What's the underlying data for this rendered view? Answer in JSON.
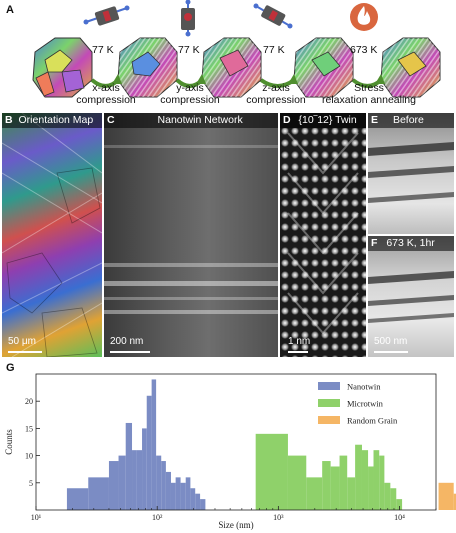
{
  "panel_a": {
    "letter": "A",
    "steps": [
      {
        "temp": "77 K",
        "line1": "x-axis",
        "line2": "compression"
      },
      {
        "temp": "77 K",
        "line1": "y-axis",
        "line2": "compression"
      },
      {
        "temp": "77 K",
        "line1": "z-axis",
        "line2": "compression"
      },
      {
        "temp": "673 K",
        "line1": "Stress",
        "line2": "relaxation annealing"
      }
    ]
  },
  "panel_b": {
    "letter": "B",
    "title": "Orientation Map",
    "scale": "50 μm"
  },
  "panel_c": {
    "letter": "C",
    "title": "Nanotwin Network",
    "scale": "200 nm"
  },
  "panel_d": {
    "letter": "D",
    "title": "{10‾12} Twin",
    "scale": "1 nm"
  },
  "panel_e": {
    "letter": "E",
    "title": "Before"
  },
  "panel_f": {
    "letter": "F",
    "title": "673 K, 1hr",
    "scale": "500 nm"
  },
  "panel_g": {
    "letter": "G"
  },
  "colors": {
    "nanotwin": "#7b8cc4",
    "microtwin": "#8fd16a",
    "random_grain": "#f5b665"
  },
  "chart_data": {
    "type": "bar",
    "xlabel": "Size (nm)",
    "ylabel": "Counts",
    "xscale": "log",
    "xlim": [
      10,
      20000
    ],
    "ylim": [
      0,
      25
    ],
    "xticks": [
      "10¹",
      "10²",
      "10³",
      "10⁴",
      "10⁵"
    ],
    "xtick_values": [
      10,
      100,
      1000,
      10000,
      100000
    ],
    "yticks": [
      "5",
      "10",
      "15",
      "20"
    ],
    "legend": "top-right",
    "series": [
      {
        "name": "Nanotwin",
        "color": "#7b8cc4",
        "edges": [
          18,
          27,
          40,
          48,
          55,
          62,
          68,
          75,
          82,
          90,
          98,
          108,
          118,
          130,
          142,
          156,
          172,
          188,
          206,
          226,
          250
        ],
        "counts": [
          4,
          6,
          9,
          10,
          16,
          11,
          11,
          15,
          21,
          24,
          10,
          9,
          7,
          5,
          6,
          5,
          6,
          4,
          3,
          2
        ]
      },
      {
        "name": "Microtwin",
        "color": "#8fd16a",
        "edges": [
          650,
          1200,
          1700,
          2300,
          2700,
          3200,
          3700,
          4300,
          4900,
          5500,
          6100,
          6800,
          7500,
          8400,
          9400,
          10500
        ],
        "counts": [
          14,
          10,
          6,
          9,
          8,
          10,
          6,
          12,
          11,
          8,
          11,
          10,
          5,
          4,
          2
        ]
      },
      {
        "name": "Random Grain",
        "color": "#f5b665",
        "edges": [
          21000,
          28000,
          34000,
          40000,
          47000,
          54000,
          60000,
          67000,
          75000,
          83000,
          92000,
          101000,
          112000,
          124000,
          136000,
          150000,
          165000
        ],
        "counts": [
          5,
          3,
          6,
          4,
          6,
          9,
          10,
          9,
          14,
          9,
          8,
          3,
          2,
          5,
          3,
          2
        ]
      }
    ]
  }
}
